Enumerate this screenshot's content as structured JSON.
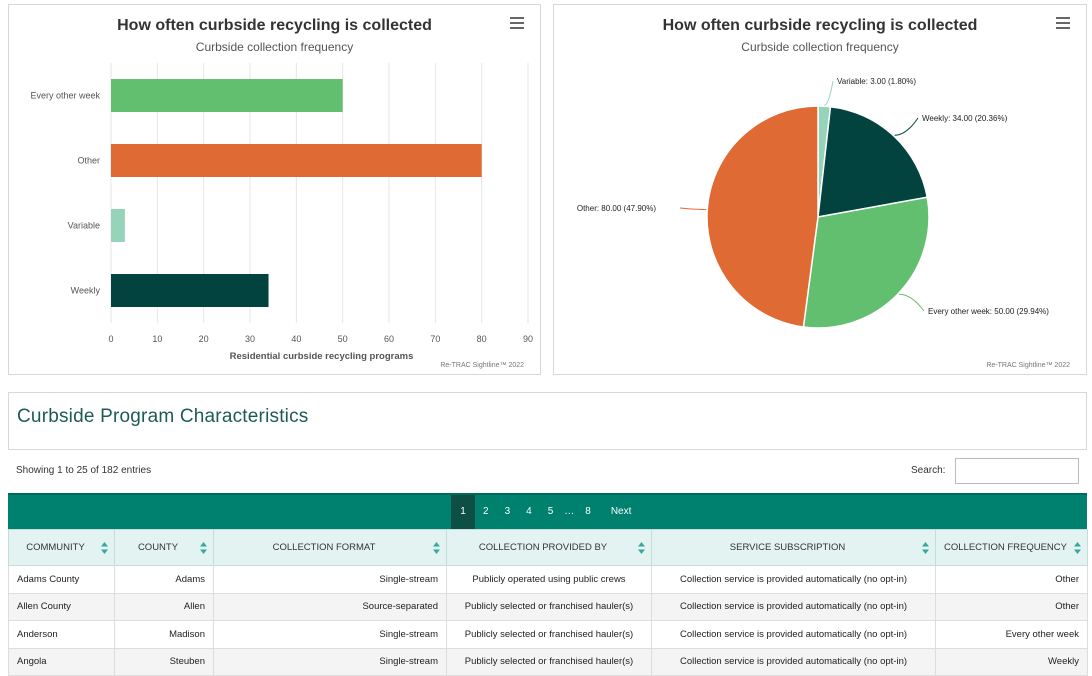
{
  "bar_chart": {
    "title": "How often curbside recycling is collected",
    "subtitle": "Curbside collection frequency",
    "credit": "Re-TRAC Sightline™ 2022",
    "colors": {
      "Every other week": "#62bf6f",
      "Other": "#e06a33",
      "Variable": "#95d3bb",
      "Weekly": "#02433f"
    }
  },
  "pie_chart": {
    "title": "How often curbside recycling is collected",
    "subtitle": "Curbside collection frequency",
    "credit": "Re-TRAC Sightline™ 2022"
  },
  "chart_data": [
    {
      "type": "bar",
      "orientation": "horizontal",
      "title": "How often curbside recycling is collected",
      "subtitle": "Curbside collection frequency",
      "categories": [
        "Every other week",
        "Other",
        "Variable",
        "Weekly"
      ],
      "values": [
        50,
        80,
        3,
        34
      ],
      "xlabel": "Residential curbside recycling programs",
      "xlim": [
        0,
        90
      ],
      "xticks": [
        0,
        10,
        20,
        30,
        40,
        50,
        60,
        70,
        80,
        90
      ],
      "grid": true,
      "legend": "none"
    },
    {
      "type": "pie",
      "title": "How often curbside recycling is collected",
      "subtitle": "Curbside collection frequency",
      "slices": [
        {
          "label": "Variable",
          "value": 3.0,
          "percent": 1.8,
          "color": "#95d3bb",
          "text": "Variable: 3.00 (1.80%)"
        },
        {
          "label": "Weekly",
          "value": 34.0,
          "percent": 20.36,
          "color": "#02433f",
          "text": "Weekly: 34.00 (20.36%)"
        },
        {
          "label": "Every other week",
          "value": 50.0,
          "percent": 29.94,
          "color": "#62bf6f",
          "text": "Every other week: 50.00 (29.94%)"
        },
        {
          "label": "Other",
          "value": 80.0,
          "percent": 47.9,
          "color": "#e06a33",
          "text": "Other: 80.00 (47.90%)"
        }
      ]
    }
  ],
  "section": {
    "title": "Curbside Program Characteristics"
  },
  "table_info": {
    "showing": "Showing 1 to 25 of 182 entries",
    "search_label": "Search:",
    "search_value": ""
  },
  "pagination": {
    "pages": [
      "1",
      "2",
      "3",
      "4",
      "5"
    ],
    "ellipsis": "…",
    "last": "8",
    "next": "Next",
    "active": "1"
  },
  "table": {
    "columns": [
      "COMMUNITY",
      "COUNTY",
      "COLLECTION FORMAT",
      "COLLECTION PROVIDED BY",
      "SERVICE SUBSCRIPTION",
      "COLLECTION FREQUENCY"
    ],
    "rows": [
      [
        "Adams County",
        "Adams",
        "Single-stream",
        "Publicly operated using public crews",
        "Collection service is provided automatically (no opt-in)",
        "Other"
      ],
      [
        "Allen County",
        "Allen",
        "Source-separated",
        "Publicly selected or franchised hauler(s)",
        "Collection service is provided automatically (no opt-in)",
        "Other"
      ],
      [
        "Anderson",
        "Madison",
        "Single-stream",
        "Publicly selected or franchised hauler(s)",
        "Collection service is provided automatically (no opt-in)",
        "Every other week"
      ],
      [
        "Angola",
        "Steuben",
        "Single-stream",
        "Publicly selected or franchised hauler(s)",
        "Collection service is provided automatically (no opt-in)",
        "Weekly"
      ]
    ]
  }
}
